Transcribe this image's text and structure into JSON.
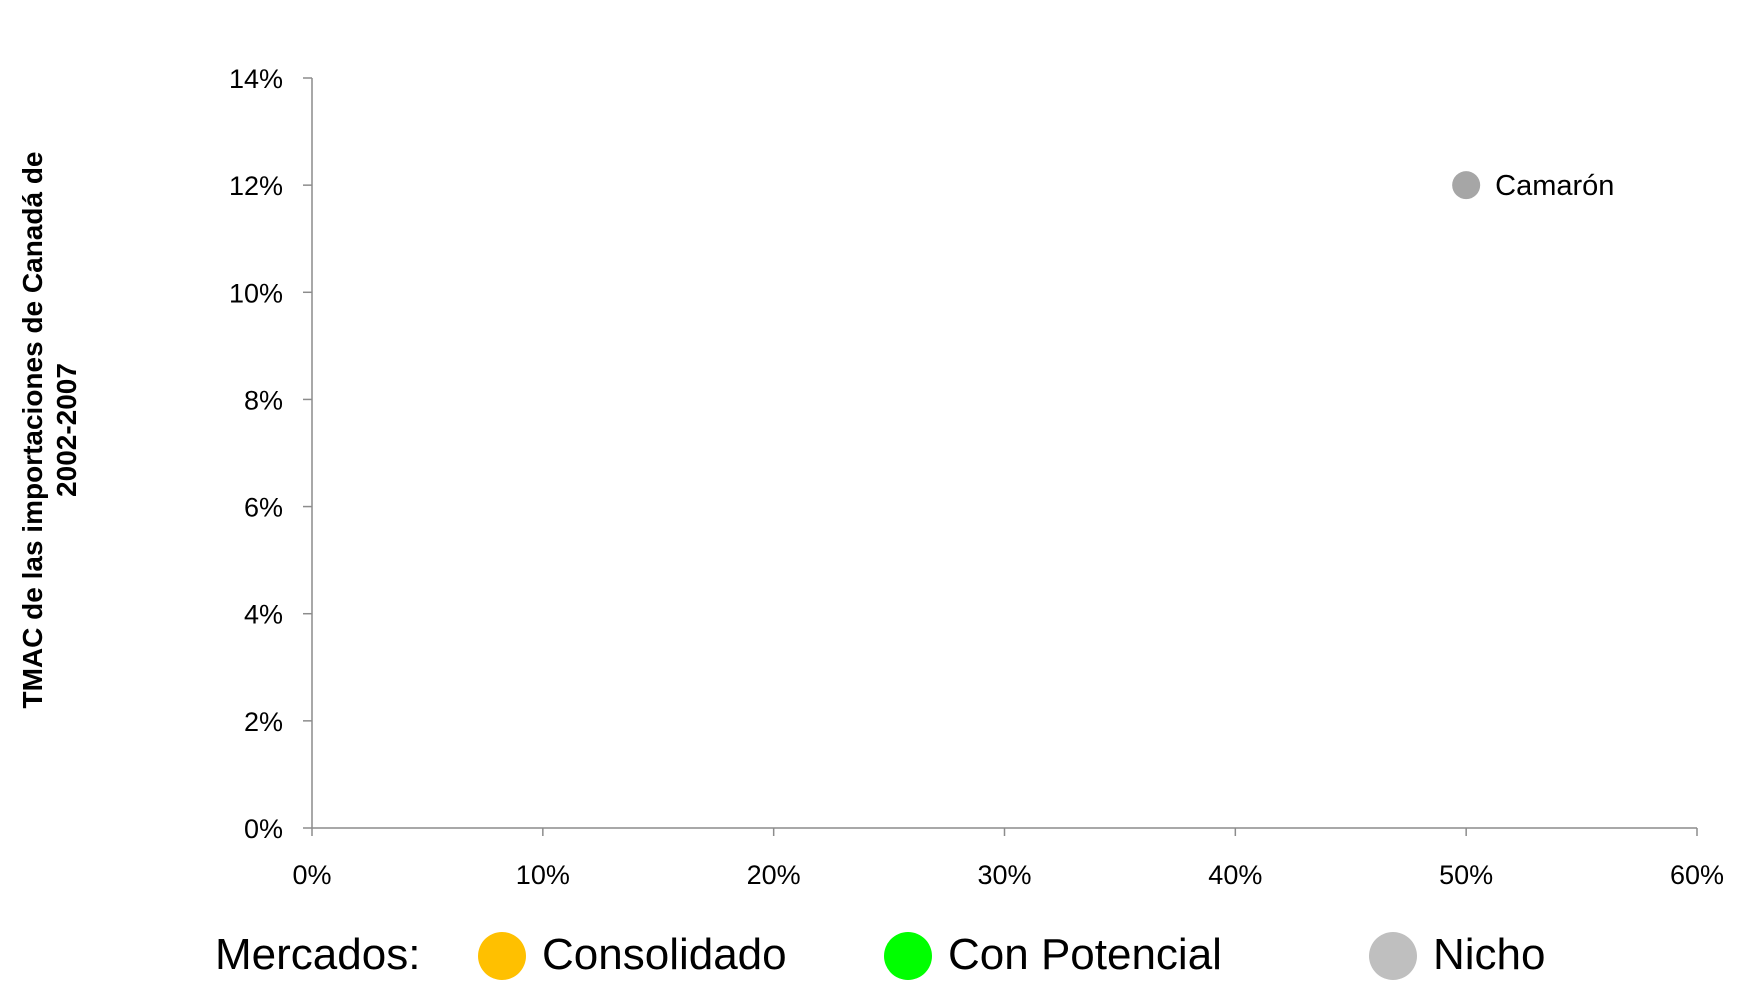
{
  "chart_data": {
    "type": "scatter",
    "title": "",
    "ylabel_lines": [
      "TMAC de las importaciones de Canadá de",
      "2002-2007"
    ],
    "xlabel": "",
    "xlim": [
      0,
      60
    ],
    "ylim": [
      0,
      14
    ],
    "x_ticks": [
      "0%",
      "10%",
      "20%",
      "30%",
      "40%",
      "50%",
      "60%"
    ],
    "y_ticks": [
      "0%",
      "2%",
      "4%",
      "6%",
      "8%",
      "10%",
      "12%",
      "14%"
    ],
    "grid": false,
    "points": [
      {
        "label": "Camarón",
        "x": 50,
        "y": 12,
        "category": "Nicho"
      }
    ]
  },
  "legend": {
    "title": "Mercados:",
    "items": [
      {
        "label": "Consolidado",
        "color": "#FFC000"
      },
      {
        "label": "Con Potencial",
        "color": "#00FF00"
      },
      {
        "label": "Nicho",
        "color": "#BFBFBF"
      }
    ]
  },
  "colors": {
    "axis": "#8C8C8C",
    "point": "#A6A6A6"
  }
}
